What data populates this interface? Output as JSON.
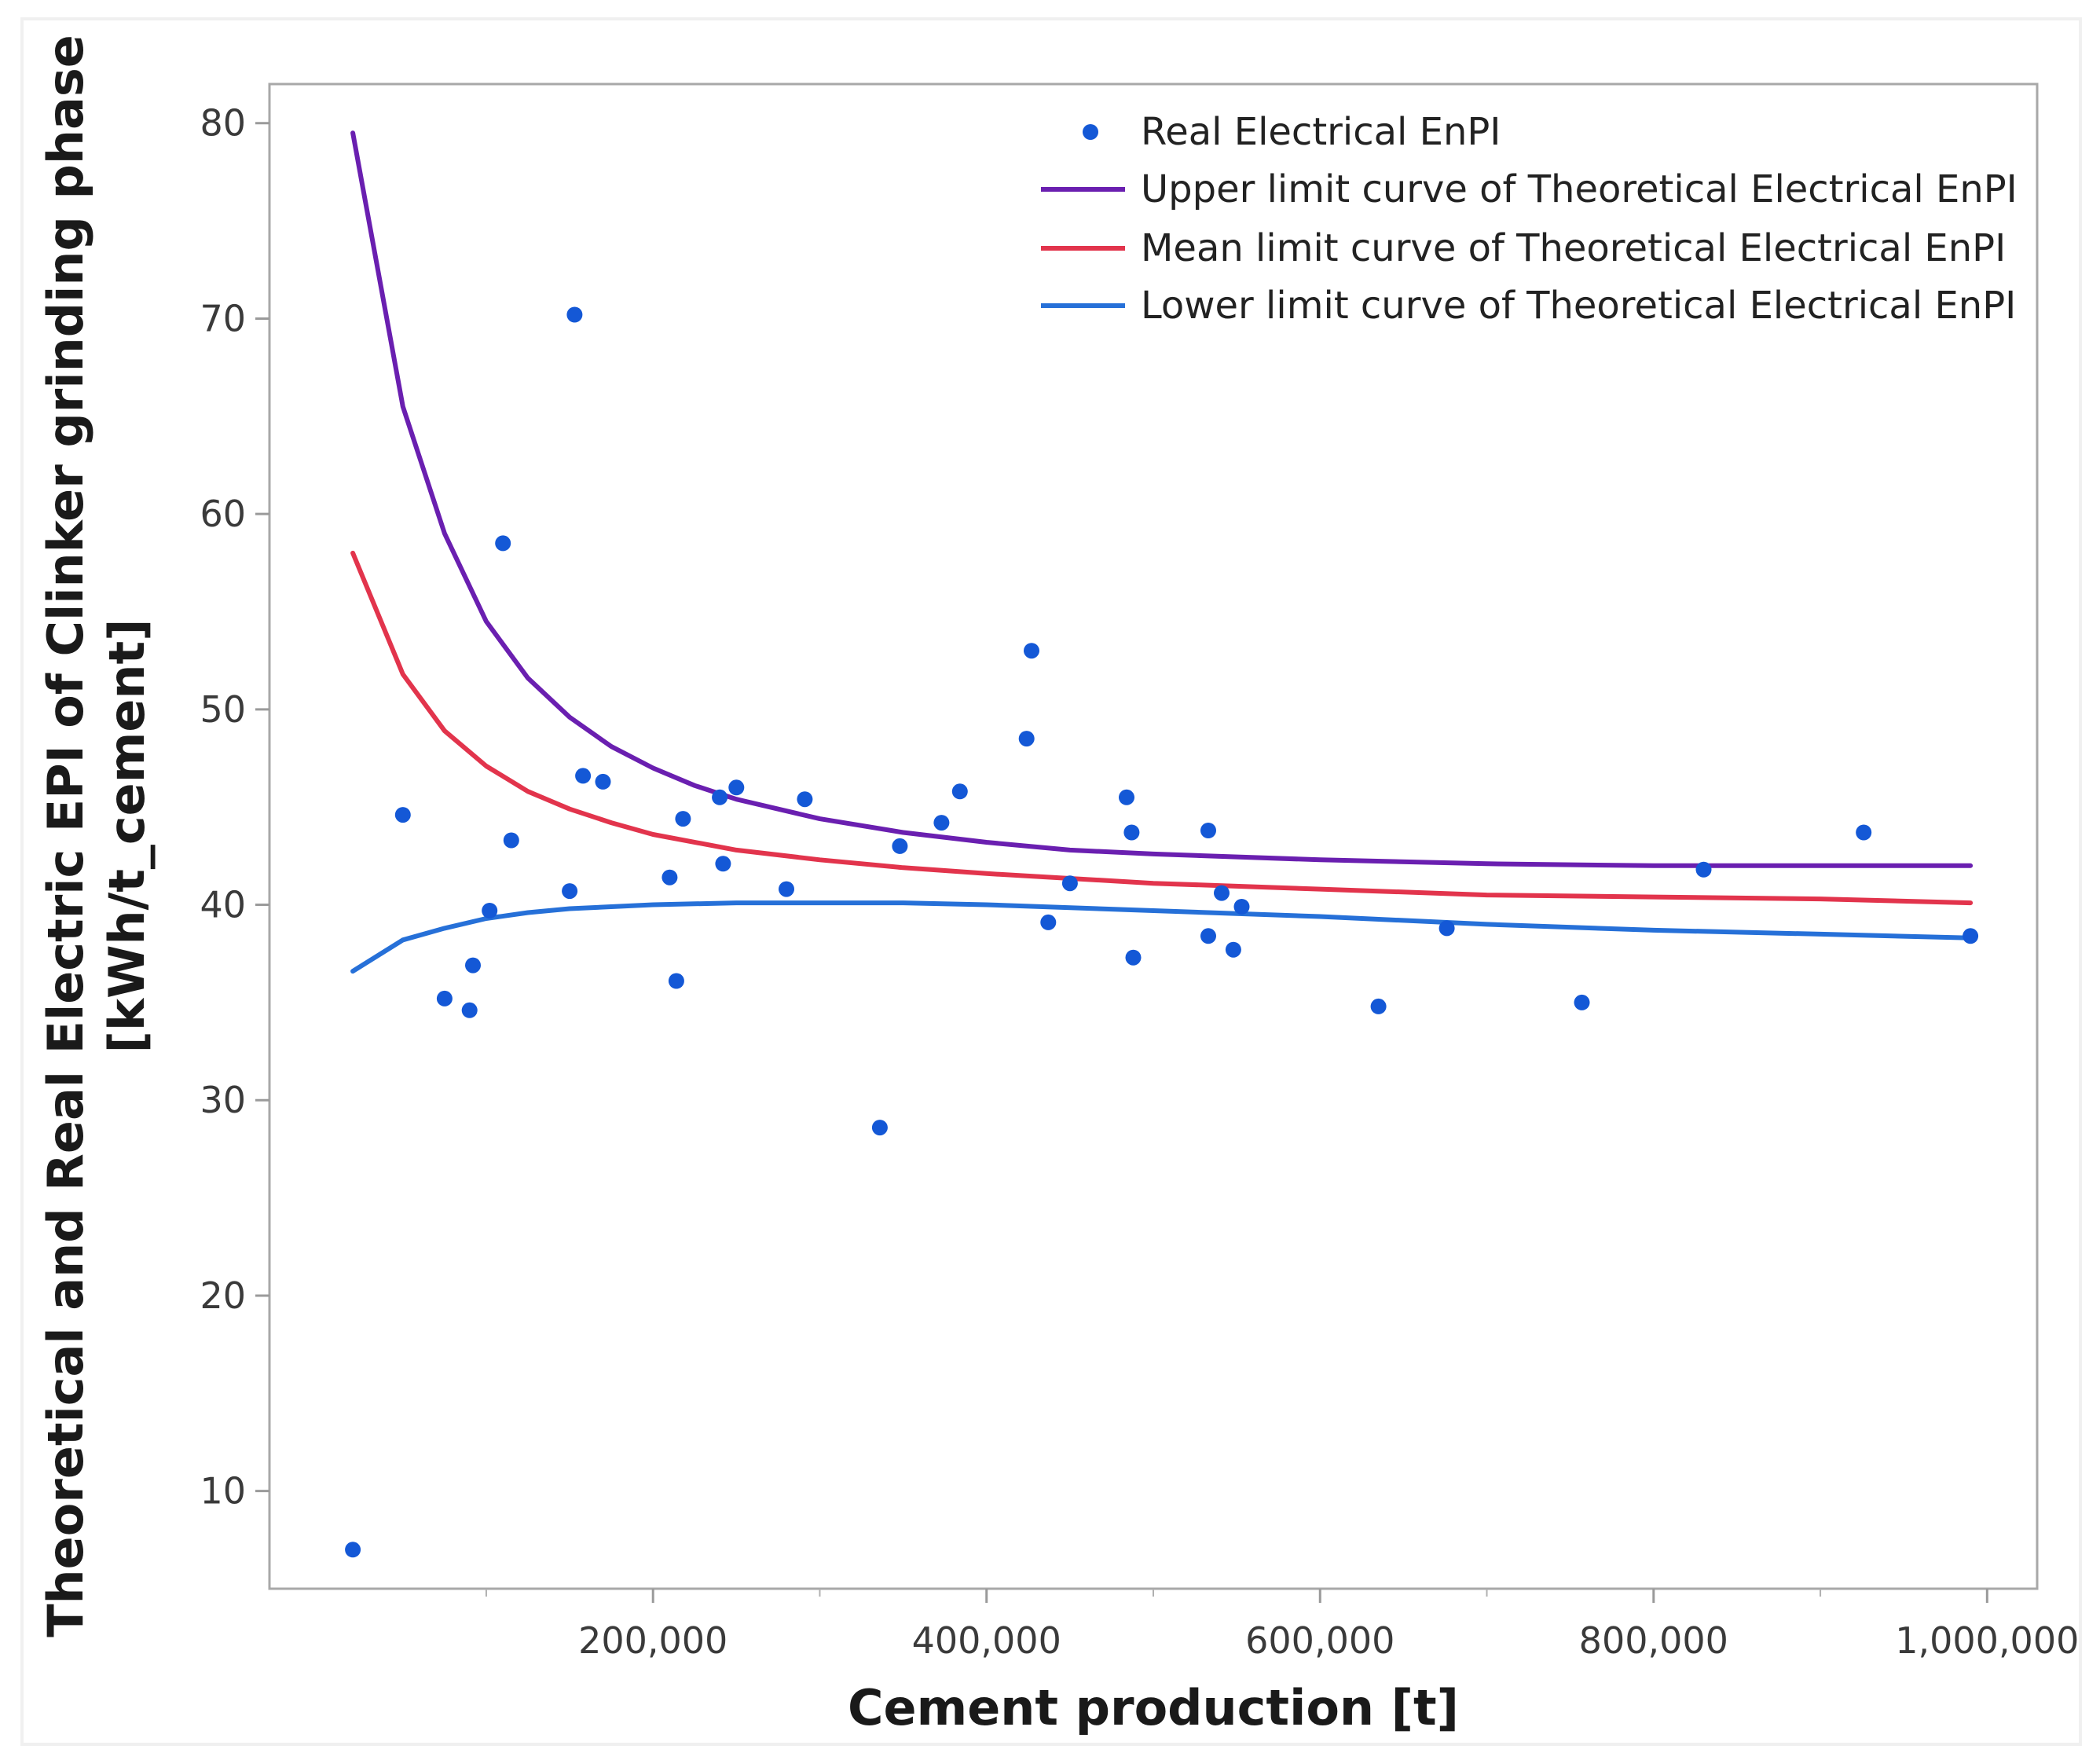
{
  "chart_data": {
    "type": "scatter",
    "title": "",
    "xlabel": "Cement production [t]",
    "ylabel_line1": "Theoretical and Real Electric EPI of Clinker grinding phase",
    "ylabel_line2": "[kWh/t_cement]",
    "xlim": [
      -30000,
      1030000
    ],
    "ylim": [
      5,
      82
    ],
    "x_ticks": [
      {
        "value": 200000,
        "label": "200,000"
      },
      {
        "value": 400000,
        "label": "400,000"
      },
      {
        "value": 600000,
        "label": "600,000"
      },
      {
        "value": 800000,
        "label": "800,000"
      },
      {
        "value": 1000000,
        "label": "1,000,000"
      }
    ],
    "x_minor_ticks": [
      100000,
      300000,
      500000,
      700000,
      900000
    ],
    "y_ticks": [
      {
        "value": 10,
        "label": "10"
      },
      {
        "value": 20,
        "label": "20"
      },
      {
        "value": 30,
        "label": "30"
      },
      {
        "value": 40,
        "label": "40"
      },
      {
        "value": 50,
        "label": "50"
      },
      {
        "value": 60,
        "label": "60"
      },
      {
        "value": 70,
        "label": "70"
      },
      {
        "value": 80,
        "label": "80"
      }
    ],
    "legend": {
      "position": "top-right"
    },
    "scatter": {
      "name": "Real Electrical EnPI",
      "color": "#1458d6",
      "points": [
        {
          "x": 20000,
          "y": 7.0
        },
        {
          "x": 50000,
          "y": 44.6
        },
        {
          "x": 75000,
          "y": 35.2
        },
        {
          "x": 90000,
          "y": 34.6
        },
        {
          "x": 92000,
          "y": 36.9
        },
        {
          "x": 102000,
          "y": 39.7
        },
        {
          "x": 110000,
          "y": 58.5
        },
        {
          "x": 115000,
          "y": 43.3
        },
        {
          "x": 150000,
          "y": 40.7
        },
        {
          "x": 153000,
          "y": 70.2
        },
        {
          "x": 158000,
          "y": 46.6
        },
        {
          "x": 170000,
          "y": 46.3
        },
        {
          "x": 210000,
          "y": 41.4
        },
        {
          "x": 214000,
          "y": 36.1
        },
        {
          "x": 218000,
          "y": 44.4
        },
        {
          "x": 240000,
          "y": 45.5
        },
        {
          "x": 242000,
          "y": 42.1
        },
        {
          "x": 250000,
          "y": 46.0
        },
        {
          "x": 280000,
          "y": 40.8
        },
        {
          "x": 291000,
          "y": 45.4
        },
        {
          "x": 336000,
          "y": 28.6
        },
        {
          "x": 348000,
          "y": 43.0
        },
        {
          "x": 373000,
          "y": 44.2
        },
        {
          "x": 384000,
          "y": 45.8
        },
        {
          "x": 424000,
          "y": 48.5
        },
        {
          "x": 427000,
          "y": 53.0
        },
        {
          "x": 437000,
          "y": 39.1
        },
        {
          "x": 450000,
          "y": 41.1
        },
        {
          "x": 484000,
          "y": 45.5
        },
        {
          "x": 487000,
          "y": 43.7
        },
        {
          "x": 488000,
          "y": 37.3
        },
        {
          "x": 533000,
          "y": 43.8
        },
        {
          "x": 533000,
          "y": 38.4
        },
        {
          "x": 541000,
          "y": 40.6
        },
        {
          "x": 548000,
          "y": 37.7
        },
        {
          "x": 553000,
          "y": 39.9
        },
        {
          "x": 635000,
          "y": 34.8
        },
        {
          "x": 676000,
          "y": 38.8
        },
        {
          "x": 757000,
          "y": 35.0
        },
        {
          "x": 830000,
          "y": 41.8
        },
        {
          "x": 926000,
          "y": 43.7
        },
        {
          "x": 990000,
          "y": 38.4
        }
      ]
    },
    "series": [
      {
        "name": "Upper limit curve of Theoretical Electrical EnPI",
        "color": "#6a1fb0",
        "x": [
          20000,
          50000,
          75000,
          100000,
          125000,
          150000,
          175000,
          200000,
          225000,
          250000,
          300000,
          350000,
          400000,
          450000,
          500000,
          600000,
          700000,
          800000,
          900000,
          990000
        ],
        "y": [
          79.5,
          65.5,
          59.0,
          54.5,
          51.6,
          49.6,
          48.1,
          47.0,
          46.1,
          45.4,
          44.4,
          43.7,
          43.2,
          42.8,
          42.6,
          42.3,
          42.1,
          42.0,
          42.0,
          42.0
        ]
      },
      {
        "name": "Mean limit curve of Theoretical Electrical EnPI",
        "color": "#e2344c",
        "x": [
          20000,
          50000,
          75000,
          100000,
          125000,
          150000,
          175000,
          200000,
          250000,
          300000,
          350000,
          400000,
          500000,
          600000,
          700000,
          800000,
          900000,
          990000
        ],
        "y": [
          58.0,
          51.8,
          48.9,
          47.1,
          45.8,
          44.9,
          44.2,
          43.6,
          42.8,
          42.3,
          41.9,
          41.6,
          41.1,
          40.8,
          40.5,
          40.4,
          40.3,
          40.1
        ]
      },
      {
        "name": "Lower limit curve of Theoretical Electrical EnPI",
        "color": "#2670d8",
        "x": [
          20000,
          50000,
          75000,
          100000,
          125000,
          150000,
          200000,
          250000,
          300000,
          350000,
          400000,
          500000,
          600000,
          700000,
          800000,
          900000,
          990000
        ],
        "y": [
          36.6,
          38.2,
          38.8,
          39.3,
          39.6,
          39.8,
          40.0,
          40.1,
          40.1,
          40.1,
          40.0,
          39.7,
          39.4,
          39.0,
          38.7,
          38.5,
          38.3
        ]
      }
    ]
  }
}
